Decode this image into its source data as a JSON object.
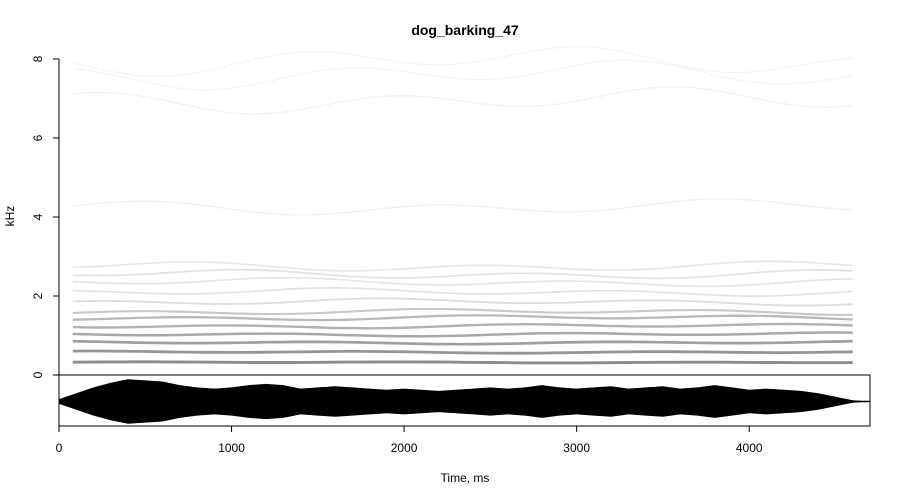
{
  "chart_data": {
    "type": "heatmap",
    "title": "dog_barking_47",
    "xlabel": "Time, ms",
    "ylabel": "kHz",
    "xlim": [
      0,
      4700
    ],
    "ylim": [
      0,
      8
    ],
    "x_ticks": [
      0,
      1000,
      2000,
      3000,
      4000
    ],
    "y_ticks": [
      0,
      2,
      4,
      6,
      8
    ],
    "grid": false,
    "colors": {
      "spectrogram": "#000000",
      "waveform": "#000000",
      "background": "#ffffff"
    },
    "harmonics_khz": [
      0.32,
      0.58,
      0.82,
      1.03,
      1.24,
      1.45,
      1.6,
      1.85,
      2.1,
      2.35,
      2.55,
      2.75,
      4.25,
      6.95,
      7.6,
      7.95
    ],
    "harmonic_strength": [
      0.85,
      0.8,
      0.75,
      0.7,
      0.65,
      0.6,
      0.5,
      0.35,
      0.3,
      0.28,
      0.3,
      0.25,
      0.15,
      0.12,
      0.08,
      0.08
    ],
    "signal_time_ms": [
      80,
      4600
    ],
    "waveform_envelope": {
      "time_ms": [
        0,
        100,
        200,
        300,
        400,
        500,
        600,
        700,
        800,
        900,
        1000,
        1100,
        1200,
        1300,
        1400,
        1500,
        1600,
        1700,
        1800,
        1900,
        2000,
        2100,
        2200,
        2300,
        2400,
        2500,
        2600,
        2700,
        2800,
        2900,
        3000,
        3100,
        3200,
        3300,
        3400,
        3500,
        3600,
        3700,
        3800,
        3900,
        4000,
        4100,
        4200,
        4300,
        4400,
        4500,
        4600,
        4700
      ],
      "amplitude": [
        0.1,
        0.35,
        0.6,
        0.8,
        0.95,
        0.9,
        0.85,
        0.7,
        0.6,
        0.55,
        0.6,
        0.7,
        0.75,
        0.7,
        0.55,
        0.6,
        0.65,
        0.6,
        0.55,
        0.5,
        0.55,
        0.5,
        0.45,
        0.5,
        0.55,
        0.6,
        0.55,
        0.6,
        0.7,
        0.6,
        0.55,
        0.6,
        0.65,
        0.55,
        0.6,
        0.65,
        0.55,
        0.6,
        0.7,
        0.6,
        0.5,
        0.55,
        0.5,
        0.45,
        0.35,
        0.2,
        0.05,
        0.0
      ]
    }
  }
}
